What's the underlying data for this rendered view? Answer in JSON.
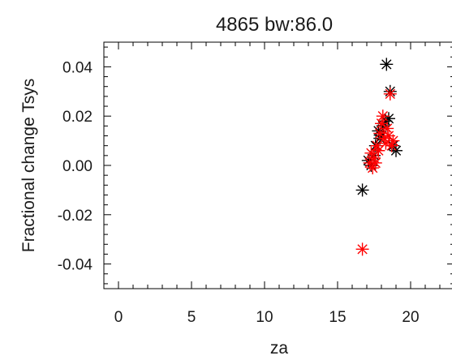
{
  "chart_data": {
    "type": "scatter",
    "title": "4865 bw:86.0",
    "xlabel": "za",
    "ylabel": "Fractional change Tsys",
    "xlim": [
      -1,
      23
    ],
    "ylim": [
      -0.05,
      0.05
    ],
    "grid": false,
    "x_ticks": [
      0,
      5,
      10,
      15,
      20
    ],
    "x_tick_labels": [
      "0",
      "5",
      "10",
      "15",
      "20"
    ],
    "y_ticks": [
      -0.04,
      -0.02,
      0.0,
      0.02,
      0.04
    ],
    "y_tick_labels": [
      "-0.04",
      "-0.02",
      "0.00",
      "0.02",
      "0.04"
    ],
    "series": [
      {
        "color": "#000000",
        "marker": "asterisk",
        "points": [
          [
            16.7,
            -0.01
          ],
          [
            17.1,
            0.002
          ],
          [
            17.3,
            0.0
          ],
          [
            17.5,
            0.004
          ],
          [
            17.6,
            0.008
          ],
          [
            17.8,
            0.014
          ],
          [
            17.9,
            0.011
          ],
          [
            18.0,
            0.012
          ],
          [
            18.1,
            0.016
          ],
          [
            18.3,
            0.018
          ],
          [
            18.35,
            0.041
          ],
          [
            18.5,
            0.019
          ],
          [
            18.6,
            0.03
          ],
          [
            18.8,
            0.008
          ],
          [
            19.0,
            0.006
          ]
        ]
      },
      {
        "color": "#ff0000",
        "marker": "asterisk",
        "points": [
          [
            16.7,
            -0.034
          ],
          [
            17.2,
            0.001
          ],
          [
            17.3,
            0.005
          ],
          [
            17.4,
            -0.001
          ],
          [
            17.5,
            0.003
          ],
          [
            17.6,
            0.001
          ],
          [
            17.7,
            0.008
          ],
          [
            17.8,
            0.006
          ],
          [
            17.9,
            0.013
          ],
          [
            18.0,
            0.017
          ],
          [
            18.1,
            0.02
          ],
          [
            18.2,
            0.011
          ],
          [
            18.3,
            0.009
          ],
          [
            18.4,
            0.015
          ],
          [
            18.5,
            0.012
          ],
          [
            18.6,
            0.029
          ],
          [
            18.7,
            0.008
          ],
          [
            18.8,
            0.01
          ]
        ]
      }
    ]
  }
}
